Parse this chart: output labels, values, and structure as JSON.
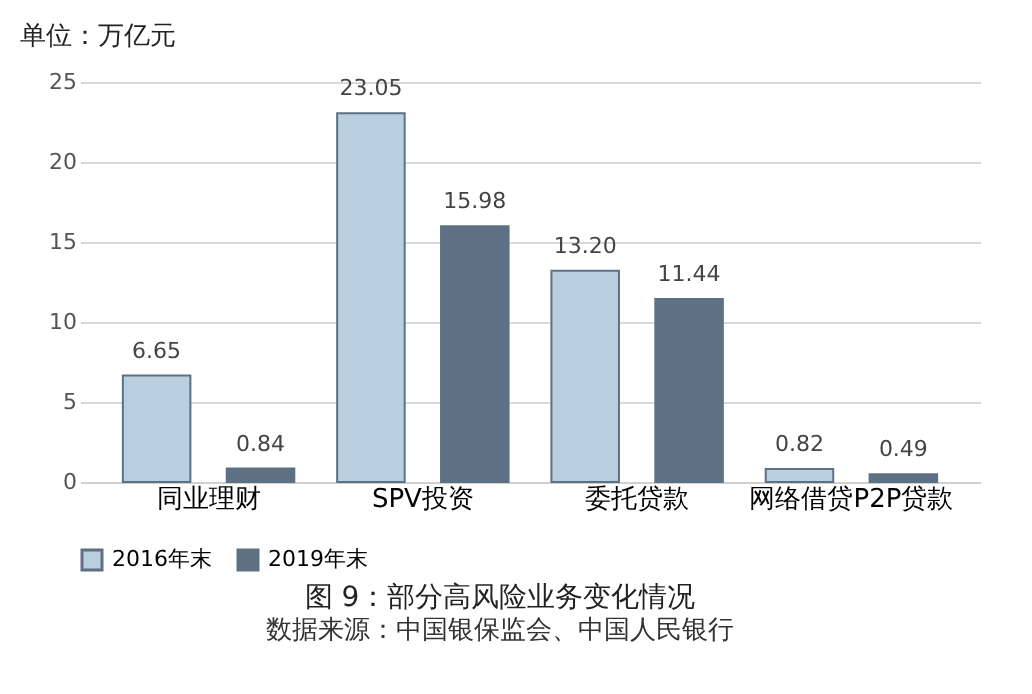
{
  "chart_data": {
    "type": "bar",
    "title": "图 9：部分高风险业务变化情况",
    "ylabel": "单位：万亿元",
    "categories": [
      "同业理财",
      "SPV投资",
      "委托贷款",
      "网络借贷P2P贷款"
    ],
    "series": [
      {
        "name": "2016年末",
        "color": "#b9cfe0",
        "values": [
          6.65,
          23.05,
          13.2,
          0.82
        ],
        "value_labels": [
          "6.65",
          "23.05",
          "13.20",
          "0.82"
        ]
      },
      {
        "name": "2019年末",
        "color": "#5e7184",
        "values": [
          0.84,
          15.98,
          11.44,
          0.49
        ],
        "value_labels": [
          "0.84",
          "15.98",
          "11.44",
          "0.49"
        ]
      }
    ],
    "ylim": [
      0,
      25
    ],
    "yticks": [
      0,
      5,
      10,
      15,
      20,
      25
    ],
    "grid": "y",
    "legend": "bottom",
    "annotations": [
      "数据来源：中国银保监会、中国人民银行"
    ]
  }
}
